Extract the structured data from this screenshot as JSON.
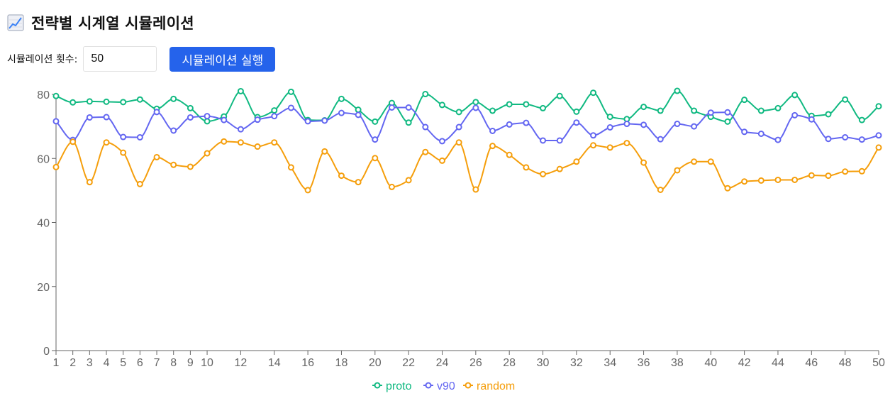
{
  "header": {
    "icon": "chart-increasing-icon",
    "title": "전략별 시계열 시뮬레이션"
  },
  "controls": {
    "count_label": "시뮬레이션 횟수:",
    "count_value": "50",
    "run_label": "시뮬레이션 실행"
  },
  "colors": {
    "accent": "#2563eb",
    "proto": "#10b981",
    "v90": "#6366f1",
    "random": "#f59e0b"
  },
  "chart_data": {
    "type": "line",
    "title": "",
    "xlabel": "",
    "ylabel": "",
    "x": [
      1,
      2,
      3,
      4,
      5,
      6,
      7,
      8,
      9,
      10,
      11,
      12,
      13,
      14,
      15,
      16,
      17,
      18,
      19,
      20,
      21,
      22,
      23,
      24,
      25,
      26,
      27,
      28,
      29,
      30,
      31,
      32,
      33,
      34,
      35,
      36,
      37,
      38,
      39,
      40,
      41,
      42,
      43,
      44,
      45,
      46,
      47,
      48,
      49,
      50
    ],
    "x_tick_labels": [
      "1",
      "2",
      "3",
      "4",
      "5",
      "6",
      "7",
      "8",
      "9",
      "10",
      "12",
      "14",
      "16",
      "18",
      "20",
      "22",
      "24",
      "26",
      "28",
      "30",
      "32",
      "34",
      "36",
      "38",
      "40",
      "42",
      "44",
      "46",
      "48",
      "50"
    ],
    "y_tick_labels": [
      "0",
      "20",
      "40",
      "60",
      "80"
    ],
    "ylim": [
      0,
      80
    ],
    "grid": false,
    "legend_position": "bottom",
    "series": [
      {
        "name": "proto",
        "color": "#10b981",
        "values": [
          79.5,
          77.5,
          77.8,
          77.7,
          77.6,
          78.4,
          75.5,
          78.6,
          75.7,
          71.6,
          73.1,
          81.0,
          72.9,
          75.0,
          80.8,
          72.0,
          71.9,
          78.6,
          75.2,
          71.5,
          77.3,
          71.2,
          80.1,
          76.7,
          74.5,
          77.6,
          74.9,
          76.9,
          76.9,
          75.7,
          79.5,
          74.6,
          80.5,
          73.0,
          72.3,
          76.1,
          74.9,
          81.1,
          74.9,
          73.0,
          71.5,
          78.3,
          74.9,
          75.7,
          79.8,
          73.3,
          73.8,
          78.4,
          72.0,
          76.3
        ]
      },
      {
        "name": "v90",
        "color": "#6366f1",
        "values": [
          71.6,
          65.8,
          72.8,
          72.9,
          66.7,
          66.6,
          74.5,
          68.7,
          72.8,
          73.2,
          72.0,
          69.1,
          72.1,
          73.2,
          75.8,
          71.6,
          71.8,
          74.2,
          73.6,
          65.9,
          75.9,
          75.9,
          69.8,
          65.4,
          69.8,
          75.8,
          68.6,
          70.6,
          71.1,
          65.6,
          65.6,
          71.2,
          67.2,
          69.7,
          70.8,
          70.5,
          66.0,
          70.8,
          70.0,
          74.3,
          74.4,
          68.3,
          67.7,
          65.8,
          73.5,
          72.2,
          66.1,
          66.6,
          65.9,
          67.2
        ]
      },
      {
        "name": "random",
        "color": "#f59e0b",
        "values": [
          57.3,
          65.2,
          52.6,
          65.0,
          61.8,
          52.0,
          60.4,
          58.0,
          57.4,
          61.6,
          65.3,
          65.0,
          63.7,
          65.0,
          57.2,
          50.1,
          62.2,
          54.6,
          52.6,
          60.1,
          51.1,
          53.2,
          62.0,
          59.3,
          65.0,
          50.3,
          63.9,
          61.1,
          57.2,
          55.1,
          56.7,
          59.0,
          64.1,
          63.4,
          64.8,
          58.7,
          50.2,
          56.3,
          59.0,
          59.0,
          50.7,
          52.8,
          53.1,
          53.3,
          53.3,
          54.7,
          54.6,
          55.9,
          56.0,
          63.4
        ]
      }
    ]
  }
}
